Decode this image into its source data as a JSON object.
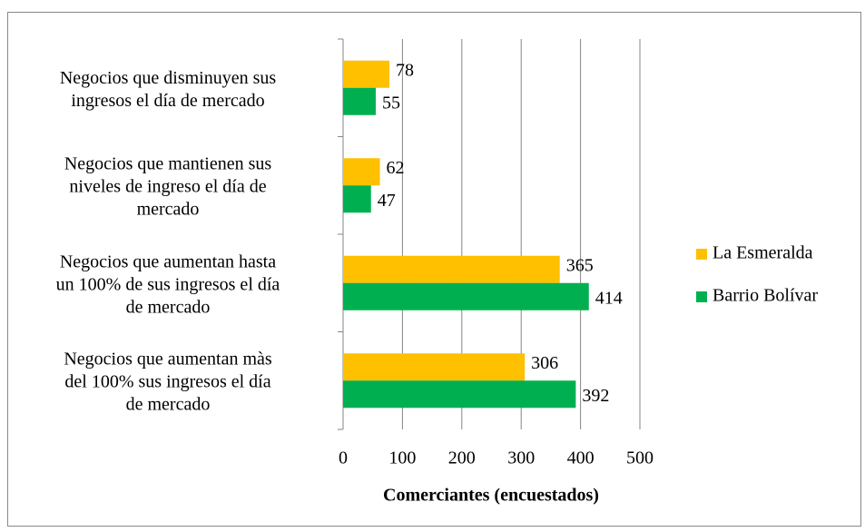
{
  "chart_data": {
    "type": "bar",
    "orientation": "horizontal",
    "x_label": "Comerciantes (encuestados)",
    "categories": [
      "Negocios que disminuyen sus\ningresos el día de mercado",
      "Negocios que mantienen sus\nniveles de ingreso el día de\nmercado",
      "Negocios que aumentan hasta\nun 100% de sus ingresos el día\nde mercado",
      "Negocios que aumentan màs\ndel 100% sus ingresos el día\nde mercado"
    ],
    "series": [
      {
        "name": "La Esmeralda",
        "color": "#FFC000",
        "values": [
          78,
          62,
          365,
          306
        ]
      },
      {
        "name": "Barrio Bolívar",
        "color": "#00B050",
        "values": [
          55,
          47,
          414,
          392
        ]
      }
    ],
    "xlim": [
      0,
      500
    ],
    "xticks": [
      0,
      100,
      200,
      300,
      400,
      500
    ],
    "grid": true,
    "legend": "right"
  }
}
